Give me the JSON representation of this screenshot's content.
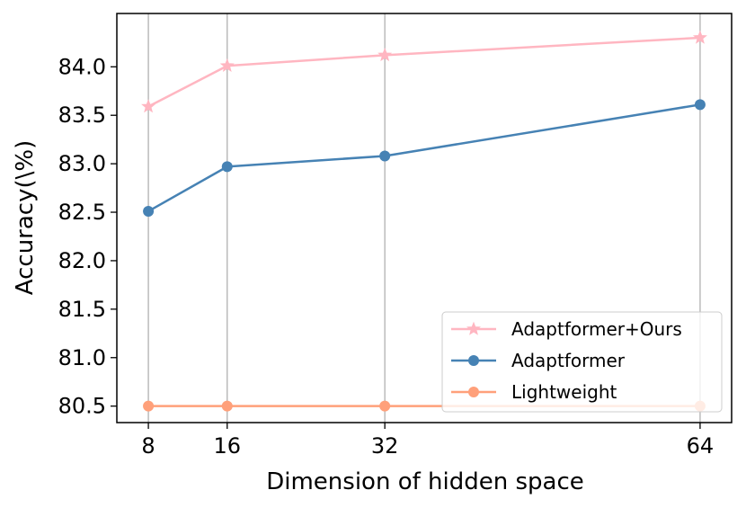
{
  "chart_data": {
    "type": "line",
    "x": [
      8,
      16,
      32,
      64
    ],
    "xticks": [
      "8",
      "16",
      "32",
      "64"
    ],
    "yticks": [
      "80.5",
      "81.0",
      "81.5",
      "82.0",
      "82.5",
      "83.0",
      "83.5",
      "84.0"
    ],
    "xlabel": "Dimension of hidden space",
    "ylabel": "Accuracy(\\%)",
    "ylim": [
      80.33,
      84.55
    ],
    "grid": "vertical",
    "legend_position": "lower-right",
    "series": [
      {
        "name": "Adaptformer+Ours",
        "values": [
          83.59,
          84.01,
          84.12,
          84.3
        ],
        "color": "#ffb6c1",
        "marker": "star"
      },
      {
        "name": "Adaptformer",
        "values": [
          82.51,
          82.97,
          83.08,
          83.61
        ],
        "color": "#4682b4",
        "marker": "circle"
      },
      {
        "name": "Lightweight",
        "values": [
          80.5,
          80.5,
          80.5,
          80.5
        ],
        "color": "#ffa07a",
        "marker": "circle"
      }
    ]
  }
}
